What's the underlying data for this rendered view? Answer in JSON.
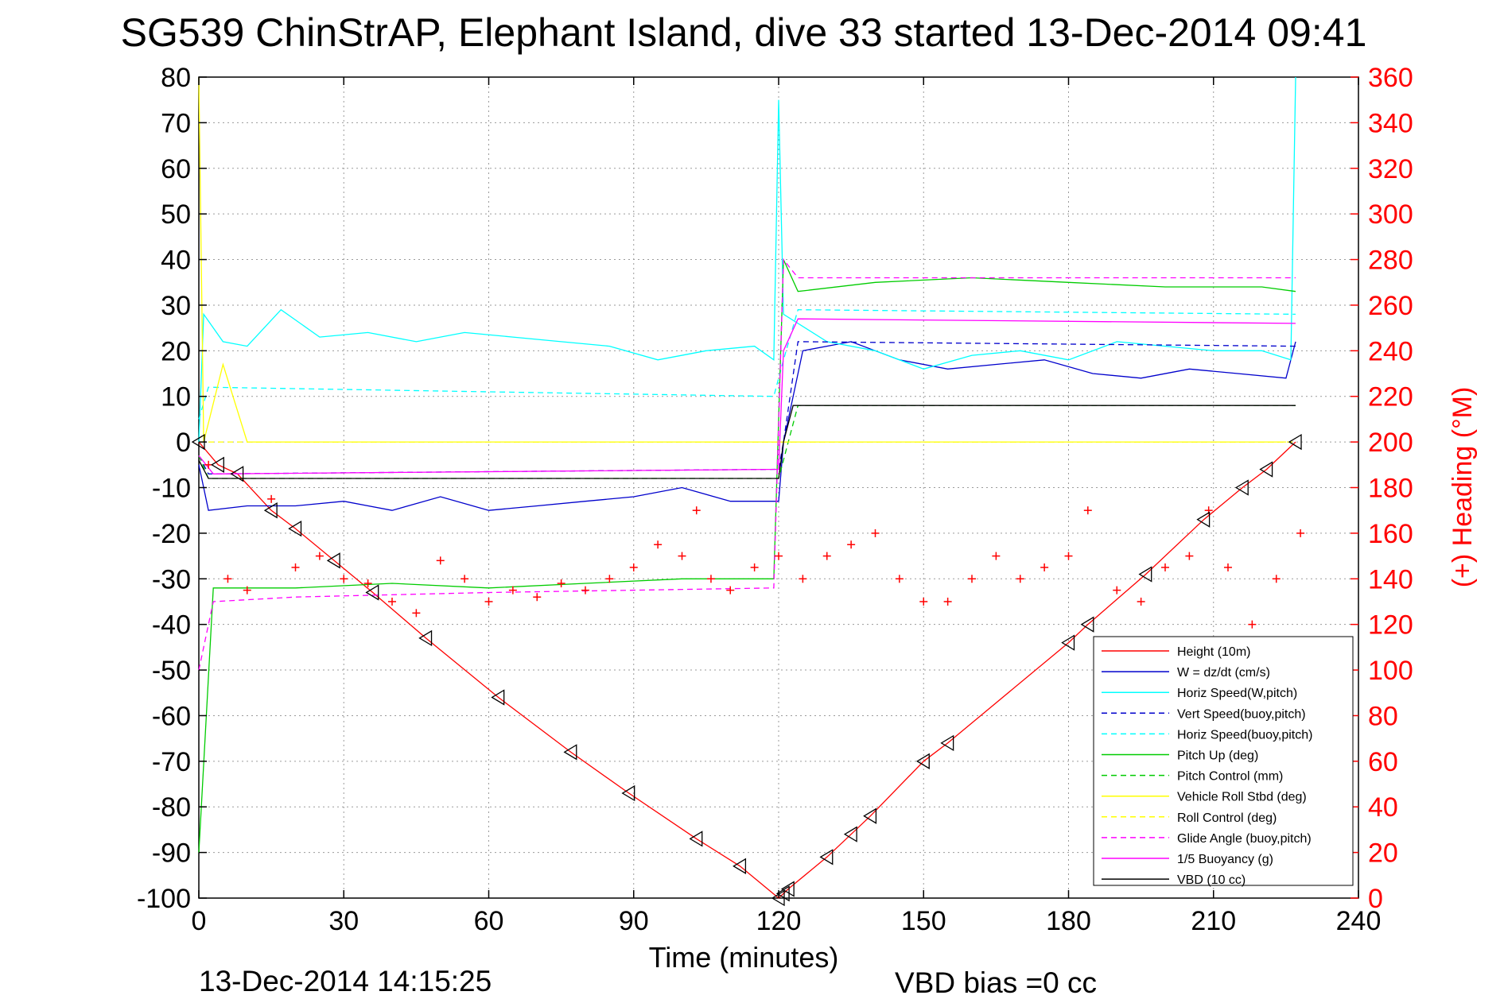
{
  "chart_data": {
    "type": "line",
    "title": "SG539 ChinStrAP, Elephant Island, dive 33 started 13-Dec-2014 09:41",
    "xlabel": "Time (minutes)",
    "ylabel": "",
    "ylabel_right": "(+) Heading (°M)",
    "xlim": [
      0,
      240
    ],
    "ylim": [
      -100,
      80
    ],
    "ylim_right": [
      0,
      360
    ],
    "x_ticks": [
      "0",
      "30",
      "60",
      "90",
      "120",
      "150",
      "180",
      "210",
      "240"
    ],
    "y_ticks_left": [
      "80",
      "70",
      "60",
      "50",
      "40",
      "30",
      "20",
      "10",
      "0",
      "-10",
      "-20",
      "-30",
      "-40",
      "-50",
      "-60",
      "-70",
      "-80",
      "-90",
      "-100"
    ],
    "y_ticks_right": [
      "360",
      "340",
      "320",
      "300",
      "280",
      "260",
      "240",
      "220",
      "200",
      "180",
      "160",
      "140",
      "120",
      "100",
      "80",
      "60",
      "40",
      "20",
      "0"
    ],
    "grid": true,
    "legend_position": "bottom-right",
    "footer_left": "13-Dec-2014 14:15:25",
    "footer_right": "VBD bias =0 cc",
    "series": [
      {
        "name": "Height (10m)",
        "color": "#ff0000",
        "style": "solid",
        "x": [
          0,
          4,
          8,
          15,
          20,
          28,
          36,
          47,
          62,
          77,
          89,
          103,
          112,
          120,
          122,
          130,
          135,
          139,
          150,
          155,
          180,
          184,
          196,
          208,
          216,
          221,
          227
        ],
        "y": [
          0,
          -5,
          -7,
          -15,
          -19,
          -26,
          -33,
          -43,
          -56,
          -68,
          -77,
          -87,
          -93,
          -100,
          -98,
          -91,
          -86,
          -82,
          -70,
          -66,
          -44,
          -40,
          -29,
          -17,
          -10,
          -6,
          0
        ]
      },
      {
        "name": "W = dz/dt (cm/s)",
        "color": "#0000cc",
        "style": "solid",
        "x": [
          0,
          2,
          10,
          20,
          30,
          40,
          50,
          60,
          70,
          80,
          90,
          100,
          110,
          120,
          121,
          125,
          135,
          145,
          155,
          165,
          175,
          185,
          195,
          205,
          215,
          225,
          227
        ],
        "y": [
          -5,
          -15,
          -14,
          -14,
          -13,
          -15,
          -12,
          -15,
          -14,
          -13,
          -12,
          -10,
          -13,
          -13,
          0,
          20,
          22,
          18,
          16,
          17,
          18,
          15,
          14,
          16,
          15,
          14,
          22
        ]
      },
      {
        "name": "Horiz Speed(W,pitch)",
        "color": "#00ffff",
        "style": "solid",
        "x": [
          0,
          1,
          5,
          10,
          17,
          25,
          35,
          45,
          55,
          65,
          75,
          85,
          95,
          105,
          115,
          119,
          120,
          121,
          130,
          140,
          150,
          160,
          170,
          180,
          190,
          200,
          210,
          220,
          226,
          227
        ],
        "y": [
          0,
          28,
          22,
          21,
          29,
          23,
          24,
          22,
          24,
          23,
          22,
          21,
          18,
          20,
          21,
          18,
          75,
          28,
          22,
          20,
          16,
          19,
          20,
          18,
          22,
          21,
          20,
          20,
          18,
          80
        ]
      },
      {
        "name": "Vert Speed(buoy,pitch)",
        "color": "#0000cc",
        "style": "dashed",
        "x": [
          0,
          2,
          120,
          121,
          124,
          227
        ],
        "y": [
          -3,
          -7,
          -6,
          0,
          22,
          21
        ]
      },
      {
        "name": "Horiz Speed(buoy,pitch)",
        "color": "#00ffff",
        "style": "dashed",
        "x": [
          0,
          2,
          60,
          119,
          121,
          124,
          227
        ],
        "y": [
          5,
          12,
          11,
          10,
          18,
          29,
          28
        ]
      },
      {
        "name": "Pitch Up (deg)",
        "color": "#00cc00",
        "style": "solid",
        "x": [
          0,
          3,
          20,
          40,
          60,
          80,
          100,
          119,
          121,
          124,
          140,
          160,
          180,
          200,
          220,
          227
        ],
        "y": [
          -90,
          -32,
          -32,
          -31,
          -32,
          -31,
          -30,
          -30,
          40,
          33,
          35,
          36,
          35,
          34,
          34,
          33
        ]
      },
      {
        "name": "Pitch Control (mm)",
        "color": "#00cc00",
        "style": "dashed",
        "x": [
          0,
          2,
          120,
          122,
          124,
          227
        ],
        "y": [
          -3,
          -8,
          -8,
          0,
          8,
          8
        ]
      },
      {
        "name": "Vehicle Roll Stbd (deg)",
        "color": "#ffff00",
        "style": "solid",
        "x": [
          0,
          1,
          5,
          10,
          20,
          30,
          40,
          50,
          60,
          70,
          80,
          90,
          100,
          110,
          120,
          125,
          135,
          145,
          155,
          165,
          175,
          185,
          195,
          205,
          215,
          225
        ],
        "y": [
          80,
          0,
          17,
          0,
          0,
          0,
          0,
          0,
          0,
          0,
          0,
          0,
          0,
          0,
          0,
          0,
          0,
          0,
          0,
          0,
          0,
          0,
          0,
          0,
          0,
          0
        ]
      },
      {
        "name": "Roll Control (deg)",
        "color": "#ffff00",
        "style": "dashed",
        "x": [
          0,
          227
        ],
        "y": [
          0,
          0
        ]
      },
      {
        "name": "Glide Angle (buoy,pitch)",
        "color": "#ff00ff",
        "style": "dashed",
        "x": [
          0,
          3,
          20,
          60,
          119,
          121,
          124,
          227
        ],
        "y": [
          -50,
          -35,
          -34,
          -33,
          -32,
          40,
          36,
          36
        ]
      },
      {
        "name": "1/5 Buoyancy (g)",
        "color": "#ff00ff",
        "style": "solid",
        "x": [
          0,
          3,
          120,
          121,
          124,
          227
        ],
        "y": [
          -3,
          -7,
          -6,
          20,
          27,
          26
        ]
      },
      {
        "name": "VBD (10 cc)",
        "color": "#000000",
        "style": "solid",
        "x": [
          0,
          2,
          120,
          121,
          123,
          227
        ],
        "y": [
          -4,
          -8,
          -8,
          0,
          8,
          8
        ]
      }
    ],
    "heading_series": {
      "name": "(+) Heading (°M)",
      "color": "#ff0000",
      "marker": "+",
      "axis": "right",
      "x": [
        2,
        6,
        10,
        15,
        20,
        25,
        30,
        35,
        40,
        45,
        50,
        55,
        60,
        65,
        70,
        75,
        80,
        85,
        90,
        95,
        100,
        103,
        106,
        110,
        115,
        120,
        125,
        130,
        135,
        140,
        145,
        150,
        155,
        160,
        165,
        170,
        175,
        180,
        184,
        190,
        195,
        200,
        205,
        209,
        213,
        218,
        223,
        228
      ],
      "y": [
        190,
        140,
        135,
        175,
        145,
        150,
        140,
        138,
        130,
        125,
        148,
        140,
        130,
        135,
        132,
        138,
        135,
        140,
        145,
        155,
        150,
        170,
        140,
        135,
        145,
        150,
        140,
        150,
        155,
        160,
        140,
        130,
        130,
        140,
        150,
        140,
        145,
        150,
        170,
        135,
        130,
        145,
        150,
        170,
        145,
        120,
        140,
        160
      ]
    },
    "markers": {
      "symbol": "triangle",
      "color": "#000000",
      "x": [
        0,
        4,
        8,
        15,
        20,
        28,
        36,
        47,
        62,
        77,
        89,
        103,
        112,
        120,
        121,
        122,
        130,
        135,
        139,
        150,
        155,
        180,
        184,
        196,
        208,
        216,
        221,
        227
      ],
      "y": [
        0,
        -5,
        -7,
        -15,
        -19,
        -26,
        -33,
        -43,
        -56,
        -68,
        -77,
        -87,
        -93,
        -100,
        -99,
        -98,
        -91,
        -86,
        -82,
        -70,
        -66,
        -44,
        -40,
        -29,
        -17,
        -10,
        -6,
        0
      ]
    }
  }
}
